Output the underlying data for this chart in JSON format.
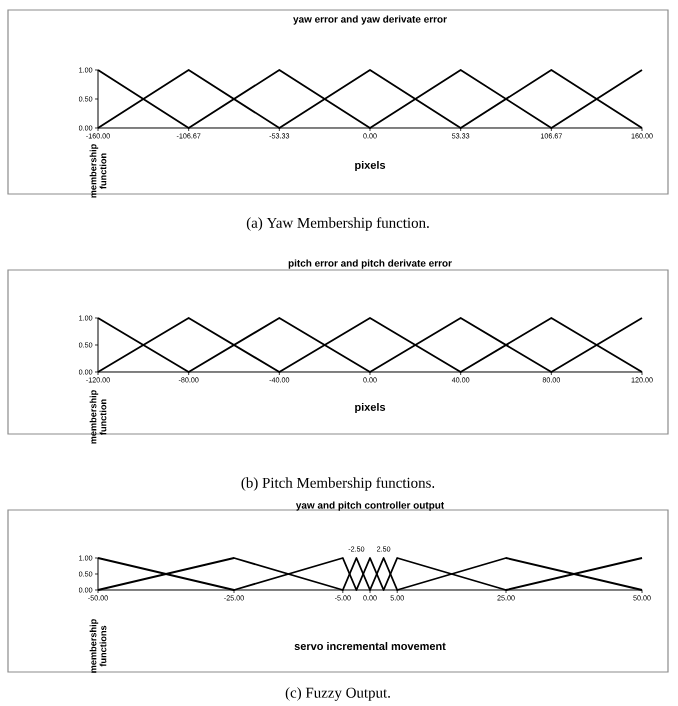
{
  "chart_data": [
    {
      "type": "line",
      "title": "yaw error and yaw derivate error",
      "xlabel": "pixels",
      "ylabel": "membership function",
      "x": [
        -160,
        -106.67,
        -53.33,
        0,
        53.33,
        106.67,
        160
      ],
      "series": [
        {
          "color": "#000000",
          "values": [
            1,
            0,
            1,
            0,
            1,
            0,
            1
          ]
        },
        {
          "color": "#000000",
          "values": [
            0,
            1,
            0,
            1,
            0,
            1,
            0
          ]
        }
      ],
      "xlim": [
        -160,
        160
      ],
      "xticks": [
        {
          "value": -160,
          "label": "-160.00"
        },
        {
          "value": -106.67,
          "label": "-106.67"
        },
        {
          "value": -53.33,
          "label": "-53.33"
        },
        {
          "value": 0,
          "label": "0.00"
        },
        {
          "value": 53.33,
          "label": "53.33"
        },
        {
          "value": 106.67,
          "label": "106.67"
        },
        {
          "value": 160,
          "label": "160.00"
        }
      ],
      "ylim": [
        0,
        1
      ],
      "yticks": [
        {
          "value": 0,
          "label": "0.00"
        },
        {
          "value": 0.5,
          "label": "0.50"
        },
        {
          "value": 1,
          "label": "1.00"
        }
      ],
      "annotations": [
        "(a) Yaw Membership function."
      ]
    },
    {
      "type": "line",
      "title": "pitch error and pitch derivate error",
      "xlabel": "pixels",
      "ylabel": "membership function",
      "x": [
        -120,
        -80,
        -40,
        0,
        40,
        80,
        120
      ],
      "series": [
        {
          "color": "#000000",
          "values": [
            1,
            0,
            1,
            0,
            1,
            0,
            1
          ]
        },
        {
          "color": "#000000",
          "values": [
            0,
            1,
            0,
            1,
            0,
            1,
            0
          ]
        }
      ],
      "xlim": [
        -120,
        120
      ],
      "xticks": [
        {
          "value": -120,
          "label": "-120.00"
        },
        {
          "value": -80,
          "label": "-80.00"
        },
        {
          "value": -40,
          "label": "-40.00"
        },
        {
          "value": 0,
          "label": "0.00"
        },
        {
          "value": 40,
          "label": "40.00"
        },
        {
          "value": 80,
          "label": "80.00"
        },
        {
          "value": 120,
          "label": "120.00"
        }
      ],
      "ylim": [
        0,
        1
      ],
      "yticks": [
        {
          "value": 0,
          "label": "0.00"
        },
        {
          "value": 0.5,
          "label": "0.50"
        },
        {
          "value": 1,
          "label": "1.00"
        }
      ],
      "annotations": [
        "(b) Pitch Membership functions."
      ]
    },
    {
      "type": "line",
      "title": "yaw and pitch controller output",
      "xlabel": "servo incremental movement",
      "ylabel": "membership functions",
      "x": [
        -50,
        -25,
        -5,
        -2.5,
        0,
        2.5,
        5,
        25,
        50
      ],
      "series": [
        {
          "color": "#000000",
          "values": [
            1,
            0,
            1,
            0,
            1,
            0,
            1,
            0,
            1
          ]
        },
        {
          "color": "#000000",
          "values": [
            0,
            1,
            0,
            1,
            0,
            1,
            0,
            1,
            0
          ]
        }
      ],
      "xlim": [
        -50,
        50
      ],
      "xticks": [
        {
          "value": -50,
          "label": "-50.00"
        },
        {
          "value": -25,
          "label": "-25.00"
        },
        {
          "value": -5,
          "label": "-5.00"
        },
        {
          "value": 0,
          "label": "0.00"
        },
        {
          "value": 5,
          "label": "5.00"
        },
        {
          "value": 25,
          "label": "25.00"
        },
        {
          "value": 50,
          "label": "50.00"
        }
      ],
      "ylim": [
        0,
        1
      ],
      "yticks": [
        {
          "value": 0,
          "label": "0.00"
        },
        {
          "value": 0.5,
          "label": "0.50"
        },
        {
          "value": 1,
          "label": "1.00"
        }
      ],
      "annotations": [
        {
          "text": "-2.50",
          "x": -2.5,
          "y": 1
        },
        {
          "text": "2.50",
          "x": 2.5,
          "y": 1
        },
        "(c) Fuzzy Output."
      ]
    }
  ]
}
